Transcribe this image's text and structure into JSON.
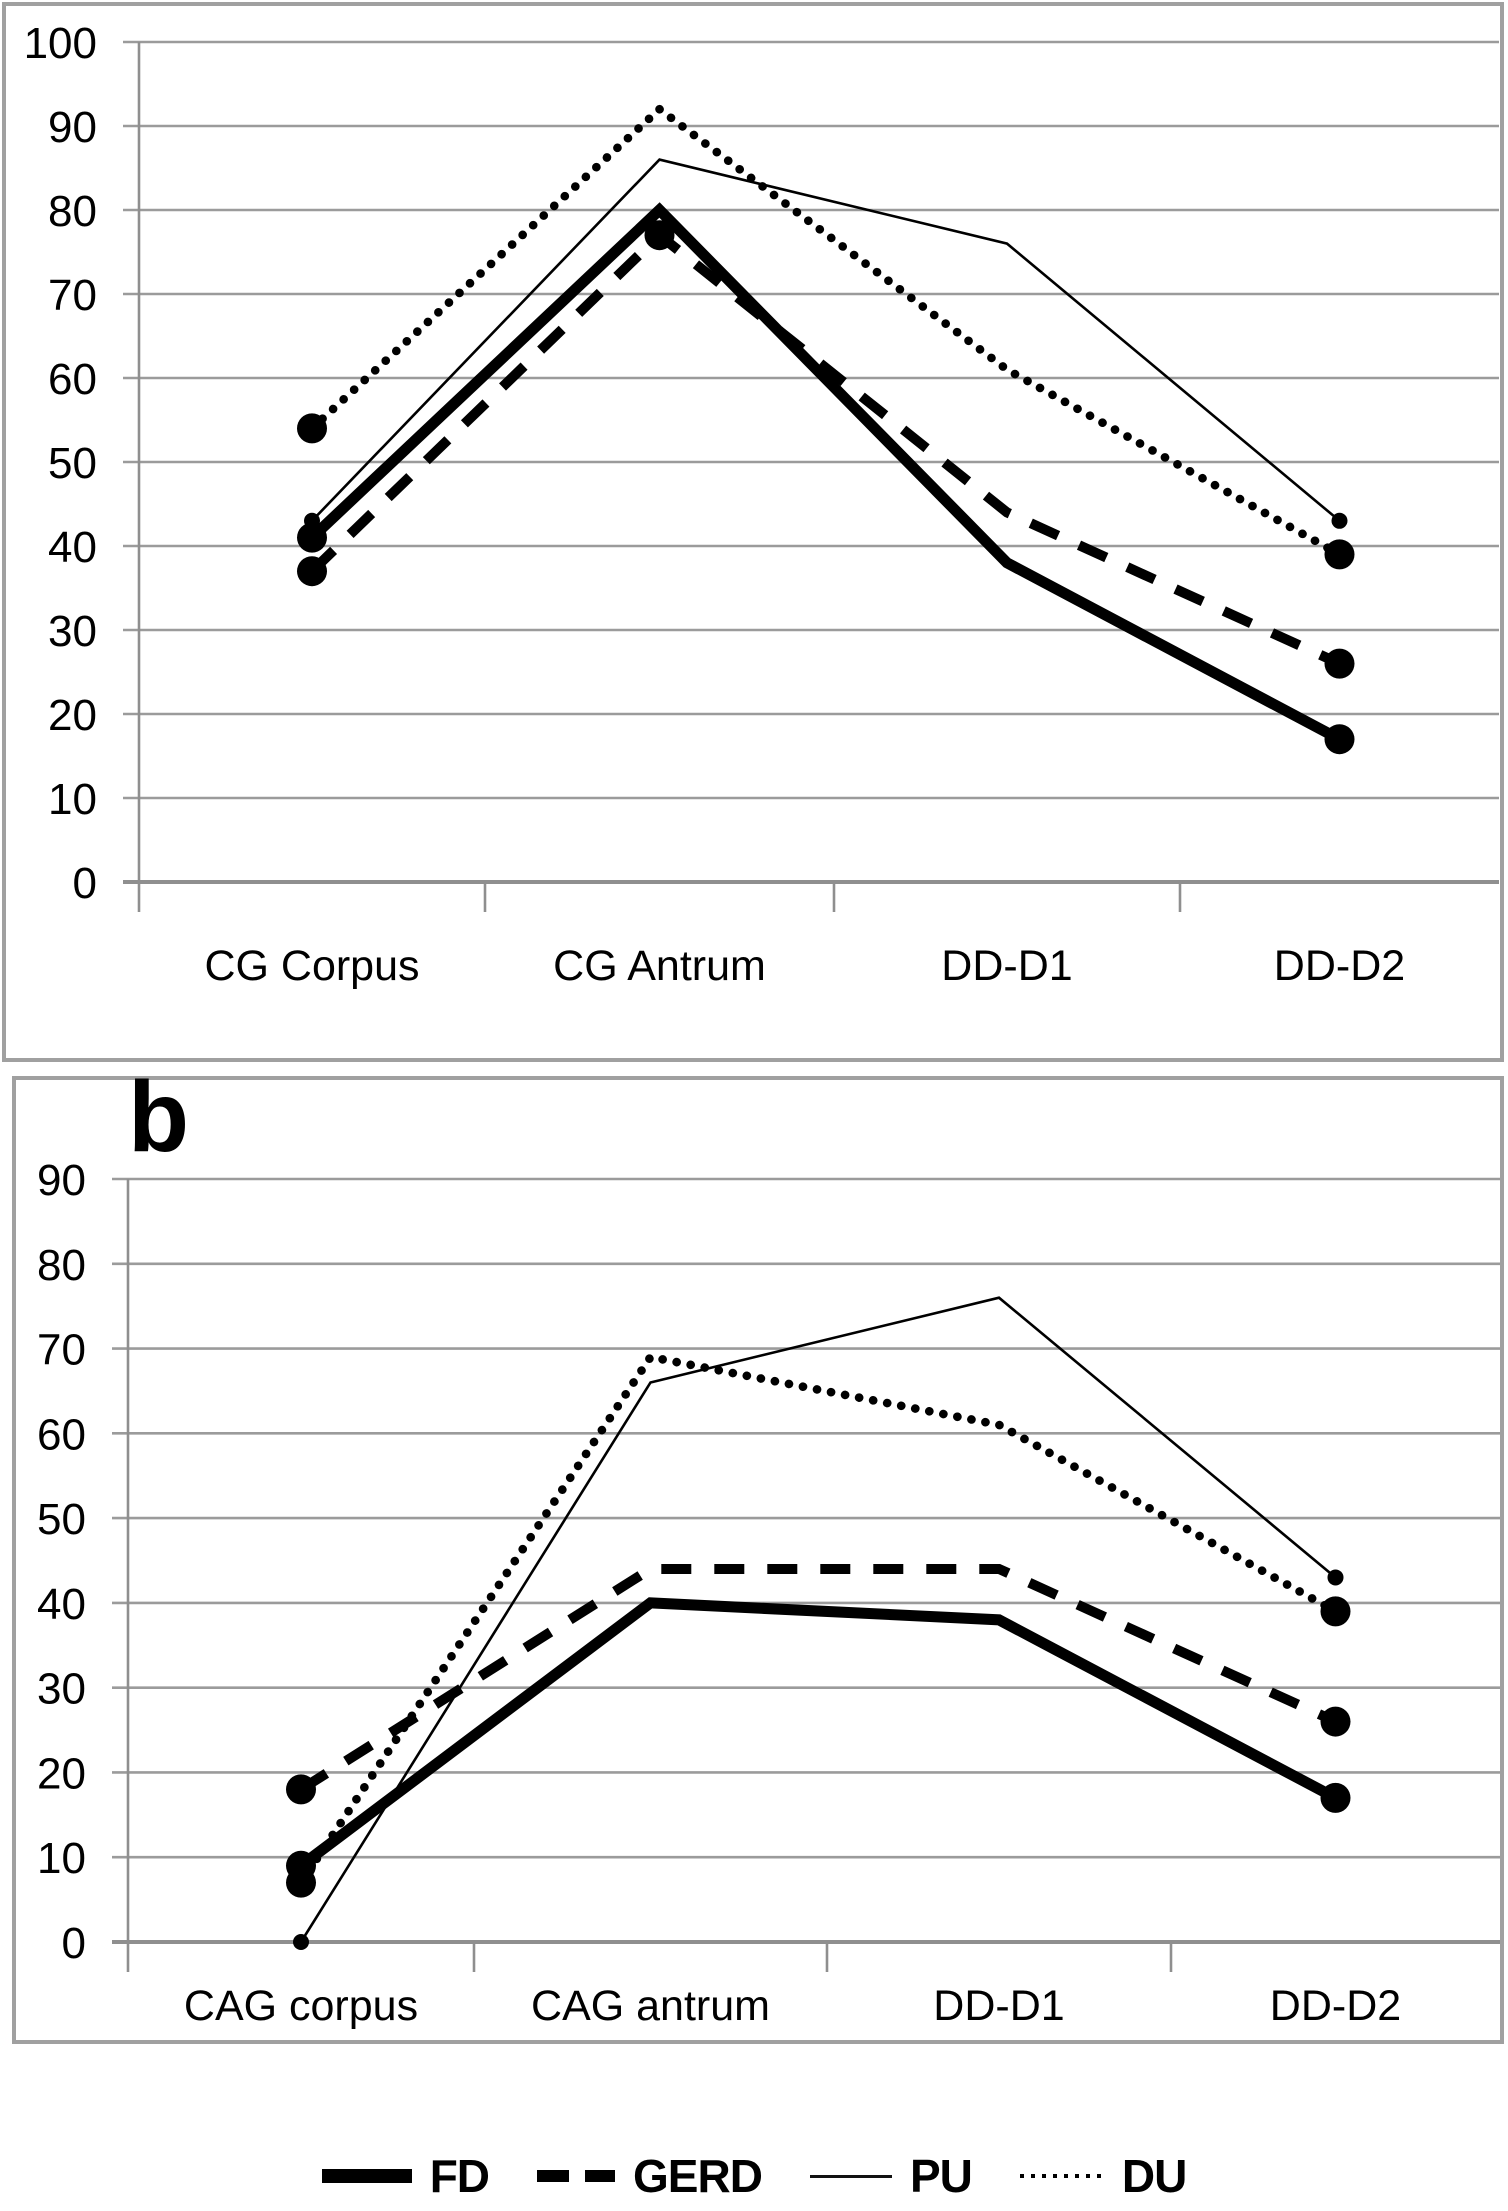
{
  "colors": {
    "line": "#000000",
    "grid": "#9b9b9b",
    "axis": "#8f8f8f",
    "frame": "#a0a0a0",
    "background": "#ffffff",
    "text": "#000000"
  },
  "chart_data": [
    {
      "id": "a",
      "type": "line",
      "panel_label": "",
      "title": "",
      "xlabel": "",
      "ylabel": "",
      "grid": true,
      "ylim": [
        0,
        100
      ],
      "ytick_step": 10,
      "yticks": [
        0,
        10,
        20,
        30,
        40,
        50,
        60,
        70,
        80,
        90,
        100
      ],
      "categories": [
        "CG Corpus",
        "CG Antrum",
        "DD-D1",
        "DD-D2"
      ],
      "series": [
        {
          "name": "FD",
          "style": "thick-solid",
          "values": [
            41,
            80,
            38,
            17
          ],
          "marker_indices": [
            0,
            3
          ],
          "marker_size": "large"
        },
        {
          "name": "GERD",
          "style": "dashed",
          "values": [
            37,
            77,
            44,
            26
          ],
          "marker_indices": [
            0,
            1,
            3
          ],
          "marker_size": "large"
        },
        {
          "name": "PU",
          "style": "thin-solid",
          "values": [
            43,
            86,
            76,
            43
          ],
          "marker_indices": [
            0,
            3
          ],
          "marker_size": "small"
        },
        {
          "name": "DU",
          "style": "dotted",
          "values": [
            54,
            92,
            61,
            39
          ],
          "marker_indices": [
            0,
            3
          ],
          "marker_size": "large"
        }
      ]
    },
    {
      "id": "b",
      "type": "line",
      "panel_label": "b",
      "title": "",
      "xlabel": "",
      "ylabel": "",
      "grid": true,
      "ylim": [
        0,
        90
      ],
      "ytick_step": 10,
      "yticks": [
        0,
        10,
        20,
        30,
        40,
        50,
        60,
        70,
        80,
        90
      ],
      "categories": [
        "CAG corpus",
        "CAG antrum",
        "DD-D1",
        "DD-D2"
      ],
      "series": [
        {
          "name": "FD",
          "style": "thick-solid",
          "values": [
            9,
            40,
            38,
            17
          ],
          "marker_indices": [
            0,
            3
          ],
          "marker_size": "large"
        },
        {
          "name": "GERD",
          "style": "dashed",
          "values": [
            18,
            44,
            44,
            26
          ],
          "marker_indices": [
            0,
            3
          ],
          "marker_size": "large"
        },
        {
          "name": "PU",
          "style": "thin-solid",
          "values": [
            0,
            66,
            76,
            43
          ],
          "marker_indices": [
            0,
            3
          ],
          "marker_size": "small"
        },
        {
          "name": "DU",
          "style": "dotted",
          "values": [
            7,
            69,
            61,
            39
          ],
          "marker_indices": [
            0,
            3
          ],
          "marker_size": "large"
        }
      ]
    }
  ],
  "legend": {
    "position": "bottom-center",
    "items": [
      {
        "label": "FD",
        "style": "thick-solid"
      },
      {
        "label": "GERD",
        "style": "dashed"
      },
      {
        "label": "PU",
        "style": "thin-solid"
      },
      {
        "label": "DU",
        "style": "dotted"
      }
    ]
  }
}
